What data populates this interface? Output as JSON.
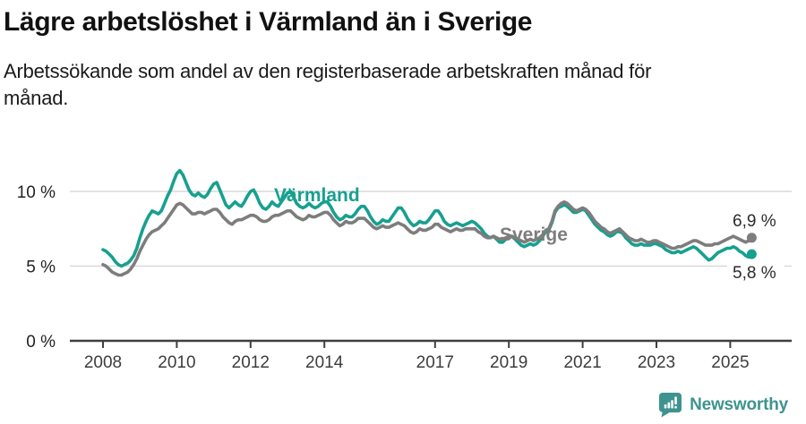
{
  "header": {
    "title": "Lägre arbetslöshet i Värmland än i Sverige",
    "subtitle": "Arbetssökande som andel av den registerbaserade arbetskraften månad för månad."
  },
  "footer": {
    "brand": "Newsworthy",
    "logo_icon": "newsworthy-speech-bubble-bar-chart-icon"
  },
  "colors": {
    "varmland": "#17a08f",
    "sverige": "#7d7d7d",
    "grid": "#d9d9d9",
    "axis": "#3f3f3f",
    "tick_text": "#3d3d3d",
    "value_text": "#2b2b2b",
    "brand_teal": "#3f938e"
  },
  "chart_data": {
    "type": "line",
    "title": "Lägre arbetslöshet i Värmland än i Sverige",
    "subtitle": "Arbetssökande som andel av den registerbaserade arbetskraften månad för månad.",
    "frequency": "monthly",
    "start_year": 2008,
    "end_point": "2025-08",
    "ylim": [
      0,
      12
    ],
    "grid": "horizontal-light",
    "legend": "inline-labels",
    "y_axis": {
      "ticks": [
        {
          "value": 0,
          "label": "0 %"
        },
        {
          "value": 5,
          "label": "5 %"
        },
        {
          "value": 10,
          "label": "10 %"
        }
      ]
    },
    "x_axis": {
      "ticks": [
        {
          "year": 2008,
          "label": "2008"
        },
        {
          "year": 2010,
          "label": "2010"
        },
        {
          "year": 2012,
          "label": "2012"
        },
        {
          "year": 2014,
          "label": "2014"
        },
        {
          "year": 2017,
          "label": "2017"
        },
        {
          "year": 2019,
          "label": "2019"
        },
        {
          "year": 2021,
          "label": "2021"
        },
        {
          "year": 2023,
          "label": "2023"
        },
        {
          "year": 2025,
          "label": "2025"
        }
      ]
    },
    "series": [
      {
        "name": "Värmland",
        "color": "#17a08f",
        "end_value": 5.8,
        "end_label": "5,8 %",
        "values": [
          6.1,
          6.0,
          5.8,
          5.6,
          5.3,
          5.1,
          5.0,
          5.1,
          5.2,
          5.4,
          5.7,
          6.2,
          6.9,
          7.5,
          8.0,
          8.4,
          8.7,
          8.6,
          8.5,
          8.7,
          9.2,
          9.7,
          10.1,
          10.7,
          11.2,
          11.4,
          11.1,
          10.6,
          10.1,
          9.8,
          9.7,
          9.9,
          9.7,
          9.6,
          9.8,
          10.2,
          10.5,
          10.6,
          10.1,
          9.6,
          9.1,
          8.9,
          9.1,
          9.3,
          9.1,
          9.0,
          9.3,
          9.7,
          10.0,
          10.1,
          9.7,
          9.2,
          8.9,
          8.8,
          9.0,
          9.3,
          9.1,
          9.0,
          9.3,
          9.6,
          9.9,
          10.0,
          9.6,
          9.2,
          9.0,
          8.9,
          9.0,
          9.2,
          9.0,
          8.9,
          9.0,
          9.2,
          9.3,
          9.3,
          9.0,
          8.6,
          8.3,
          8.1,
          8.2,
          8.4,
          8.3,
          8.3,
          8.5,
          8.8,
          9.0,
          9.0,
          8.7,
          8.3,
          8.0,
          7.8,
          7.9,
          8.1,
          8.0,
          8.0,
          8.3,
          8.6,
          8.9,
          8.9,
          8.6,
          8.2,
          7.9,
          7.7,
          7.8,
          8.0,
          7.9,
          7.9,
          8.1,
          8.4,
          8.7,
          8.7,
          8.4,
          8.0,
          7.8,
          7.7,
          7.8,
          7.9,
          7.8,
          7.7,
          7.8,
          7.9,
          8.0,
          7.9,
          7.7,
          7.5,
          7.2,
          7.0,
          6.9,
          7.0,
          6.8,
          6.6,
          6.6,
          6.8,
          6.9,
          7.0,
          6.8,
          6.6,
          6.4,
          6.3,
          6.4,
          6.5,
          6.4,
          6.5,
          6.7,
          7.0,
          7.3,
          7.4,
          7.9,
          8.6,
          8.9,
          9.0,
          9.1,
          9.0,
          8.8,
          8.6,
          8.6,
          8.7,
          8.8,
          8.7,
          8.4,
          8.1,
          7.8,
          7.6,
          7.4,
          7.3,
          7.1,
          7.0,
          7.1,
          7.3,
          7.3,
          7.2,
          6.9,
          6.7,
          6.5,
          6.4,
          6.4,
          6.5,
          6.4,
          6.4,
          6.4,
          6.5,
          6.5,
          6.4,
          6.3,
          6.1,
          6.0,
          5.9,
          5.9,
          6.0,
          5.9,
          6.0,
          6.1,
          6.2,
          6.3,
          6.2,
          6.0,
          5.8,
          5.6,
          5.4,
          5.5,
          5.7,
          5.9,
          6.0,
          6.1,
          6.2,
          6.2,
          6.3,
          6.2,
          6.0,
          5.9,
          5.7,
          5.6,
          5.8
        ]
      },
      {
        "name": "Sverige",
        "color": "#7d7d7d",
        "end_value": 6.9,
        "end_label": "6,9 %",
        "values": [
          5.1,
          5.0,
          4.8,
          4.6,
          4.5,
          4.4,
          4.4,
          4.5,
          4.6,
          4.8,
          5.1,
          5.5,
          6.0,
          6.4,
          6.8,
          7.1,
          7.3,
          7.4,
          7.5,
          7.7,
          7.9,
          8.2,
          8.5,
          8.8,
          9.1,
          9.2,
          9.1,
          8.9,
          8.7,
          8.5,
          8.5,
          8.6,
          8.6,
          8.5,
          8.6,
          8.7,
          8.8,
          8.8,
          8.6,
          8.3,
          8.1,
          7.9,
          7.8,
          8.0,
          8.1,
          8.1,
          8.2,
          8.3,
          8.4,
          8.4,
          8.3,
          8.1,
          8.0,
          8.0,
          8.1,
          8.3,
          8.4,
          8.4,
          8.5,
          8.6,
          8.7,
          8.7,
          8.5,
          8.3,
          8.2,
          8.1,
          8.2,
          8.4,
          8.3,
          8.3,
          8.4,
          8.5,
          8.6,
          8.6,
          8.4,
          8.1,
          7.9,
          7.7,
          7.8,
          8.0,
          7.9,
          7.9,
          8.0,
          8.2,
          8.2,
          8.2,
          8.0,
          7.8,
          7.6,
          7.5,
          7.6,
          7.7,
          7.6,
          7.6,
          7.7,
          7.8,
          7.9,
          7.8,
          7.7,
          7.5,
          7.3,
          7.2,
          7.3,
          7.5,
          7.4,
          7.4,
          7.5,
          7.6,
          7.8,
          7.8,
          7.6,
          7.5,
          7.4,
          7.3,
          7.4,
          7.5,
          7.4,
          7.4,
          7.5,
          7.5,
          7.5,
          7.5,
          7.3,
          7.2,
          7.0,
          6.9,
          6.9,
          7.0,
          6.9,
          6.8,
          6.8,
          6.9,
          7.0,
          7.0,
          6.9,
          6.8,
          6.7,
          6.6,
          6.7,
          6.8,
          6.7,
          6.8,
          6.9,
          7.1,
          7.4,
          7.5,
          8.0,
          8.7,
          9.0,
          9.2,
          9.3,
          9.2,
          9.0,
          8.8,
          8.7,
          8.8,
          8.9,
          8.8,
          8.6,
          8.3,
          8.0,
          7.8,
          7.6,
          7.5,
          7.3,
          7.2,
          7.3,
          7.4,
          7.5,
          7.3,
          7.1,
          6.9,
          6.8,
          6.7,
          6.7,
          6.8,
          6.7,
          6.6,
          6.6,
          6.7,
          6.7,
          6.6,
          6.5,
          6.4,
          6.3,
          6.2,
          6.2,
          6.3,
          6.3,
          6.4,
          6.5,
          6.6,
          6.7,
          6.7,
          6.6,
          6.5,
          6.4,
          6.4,
          6.4,
          6.5,
          6.5,
          6.6,
          6.7,
          6.8,
          6.9,
          7.0,
          6.9,
          6.8,
          6.7,
          6.6,
          6.7,
          6.9
        ]
      }
    ]
  }
}
